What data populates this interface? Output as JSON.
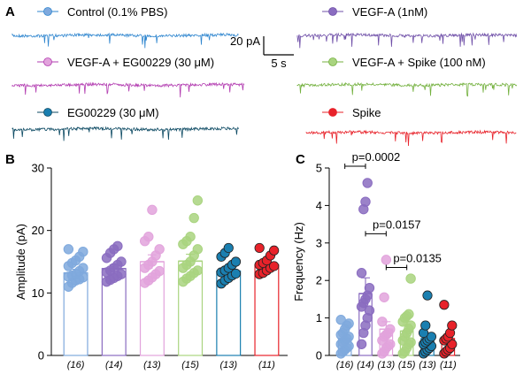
{
  "panel_a": {
    "label": "A",
    "scale_bar": {
      "y_label": "20 pA",
      "x_label": "5 s"
    },
    "traces": [
      {
        "name": "Control (0.1% PBS)",
        "color": "#2f86cf",
        "dot": "#7fa9dd"
      },
      {
        "name": "VEGF-A (1nM)",
        "color": "#6f4fa8",
        "dot": "#8a6cc0"
      },
      {
        "name": "VEGF-A + EG00229 (30 μM)",
        "color": "#b23bb0",
        "dot": "#e2a3dc"
      },
      {
        "name": "VEGF-A + Spike (100 nM)",
        "color": "#74b13f",
        "dot": "#a9d47f"
      },
      {
        "name": "EG00229 (30 μM)",
        "color": "#0d4a63",
        "dot": "#1a7fb0"
      },
      {
        "name": "Spike",
        "color": "#e8222a",
        "dot": "#e8222a"
      }
    ]
  },
  "chart_data": [
    {
      "panel": "B",
      "type": "bar",
      "ylabel": "Amplitude (pA)",
      "ylim": [
        0,
        30
      ],
      "yticks": [
        0,
        10,
        20,
        30
      ],
      "categories": [
        "(16)",
        "(14)",
        "(13)",
        "(15)",
        "(13)",
        "(11)"
      ],
      "colors": [
        "#7fa9dd",
        "#8a6cc0",
        "#e2a3dc",
        "#a9d47f",
        "#1a7fb0",
        "#e8222a"
      ],
      "outline": [
        "#7fa9dd",
        "#8a6cc0",
        "#e2a3dc",
        "#a9d47f",
        "#1a7fb0",
        "#e8222a"
      ],
      "values": [
        13.2,
        13.9,
        15.0,
        15.1,
        13.5,
        14.5
      ],
      "errors": [
        0.6,
        0.6,
        1.1,
        1.1,
        0.7,
        0.6
      ],
      "points": [
        [
          11.0,
          11.6,
          12.0,
          12.2,
          12.5,
          12.6,
          12.8,
          13.0,
          13.5,
          14.0,
          14.3,
          14.8,
          15.2,
          15.8,
          16.6,
          17.0
        ],
        [
          11.8,
          12.1,
          12.4,
          12.7,
          13.0,
          13.3,
          13.6,
          14.0,
          14.5,
          15.0,
          15.6,
          16.4,
          17.0,
          17.5
        ],
        [
          11.6,
          12.0,
          12.5,
          13.0,
          13.5,
          14.0,
          14.5,
          15.0,
          16.0,
          17.0,
          18.3,
          19.0,
          23.3
        ],
        [
          11.8,
          12.3,
          12.7,
          13.2,
          13.6,
          14.0,
          14.5,
          15.0,
          16.0,
          17.0,
          17.8,
          18.3,
          19.0,
          22.0,
          24.8
        ],
        [
          11.5,
          12.0,
          12.4,
          12.8,
          13.1,
          13.3,
          13.6,
          14.0,
          14.5,
          15.0,
          15.8,
          16.4,
          17.2
        ],
        [
          13.0,
          13.2,
          13.6,
          14.0,
          14.3,
          14.5,
          14.8,
          15.2,
          16.0,
          16.8,
          17.2
        ]
      ]
    },
    {
      "panel": "C",
      "type": "bar",
      "ylabel": "Frequency (Hz)",
      "ylim": [
        0,
        5
      ],
      "yticks": [
        0,
        1,
        2,
        3,
        4,
        5
      ],
      "categories": [
        "(16)",
        "(14)",
        "(13)",
        "(15)",
        "(13)",
        "(11)"
      ],
      "colors": [
        "#7fa9dd",
        "#8a6cc0",
        "#e2a3dc",
        "#a9d47f",
        "#1a7fb0",
        "#e8222a"
      ],
      "outline": [
        "#7fa9dd",
        "#8a6cc0",
        "#e2a3dc",
        "#a9d47f",
        "#1a7fb0",
        "#e8222a"
      ],
      "values": [
        0.45,
        1.65,
        0.7,
        0.65,
        0.45,
        0.45
      ],
      "errors": [
        0.1,
        0.42,
        0.2,
        0.18,
        0.14,
        0.12
      ],
      "points": [
        [
          0.05,
          0.1,
          0.15,
          0.2,
          0.25,
          0.3,
          0.35,
          0.4,
          0.45,
          0.5,
          0.55,
          0.6,
          0.7,
          0.8,
          0.85,
          0.95
        ],
        [
          0.3,
          0.6,
          0.8,
          1.0,
          1.2,
          1.3,
          1.4,
          1.5,
          1.6,
          1.8,
          2.2,
          3.9,
          4.1,
          4.6
        ],
        [
          0.05,
          0.1,
          0.2,
          0.25,
          0.3,
          0.4,
          0.5,
          0.55,
          0.6,
          0.7,
          0.9,
          1.55,
          2.55
        ],
        [
          0.05,
          0.1,
          0.2,
          0.3,
          0.35,
          0.4,
          0.5,
          0.6,
          0.7,
          0.8,
          0.9,
          1.0,
          1.05,
          1.1,
          2.05
        ],
        [
          0.05,
          0.1,
          0.15,
          0.2,
          0.25,
          0.3,
          0.35,
          0.4,
          0.45,
          0.5,
          0.6,
          0.8,
          1.6
        ],
        [
          0.05,
          0.1,
          0.15,
          0.2,
          0.3,
          0.4,
          0.45,
          0.5,
          0.6,
          0.8,
          1.35
        ]
      ],
      "annotations": [
        {
          "text": "p=0.0002",
          "from": 0,
          "to": 1,
          "y": 5.0
        },
        {
          "text": "p=0.0157",
          "from": 1,
          "to": 2,
          "y": 3.2
        },
        {
          "text": "p=0.0135",
          "from": 2,
          "to": 3,
          "y": 2.3
        }
      ]
    }
  ],
  "panel_labels": {
    "b": "B",
    "c": "C"
  }
}
